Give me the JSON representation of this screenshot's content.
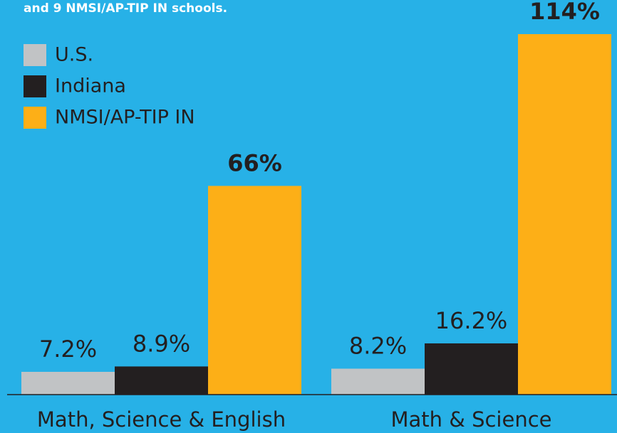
{
  "chart_data": {
    "type": "bar",
    "subtitle": "and 9 NMSI/AP-TIP IN schools.",
    "categories": [
      "Math, Science & English",
      "Math & Science"
    ],
    "series": [
      {
        "name": "U.S.",
        "color": "#c1c3c5",
        "values": [
          7.2,
          8.2
        ],
        "value_labels": [
          "7.2%",
          "8.2%"
        ]
      },
      {
        "name": "Indiana",
        "color": "#231f20",
        "values": [
          8.9,
          16.2
        ],
        "value_labels": [
          "8.9%",
          "16.2%"
        ]
      },
      {
        "name": "NMSI/AP-TIP IN",
        "color": "#fdaf17",
        "values": [
          66,
          114
        ],
        "value_labels": [
          "66%",
          "114%"
        ]
      }
    ],
    "legend": "top-left"
  }
}
